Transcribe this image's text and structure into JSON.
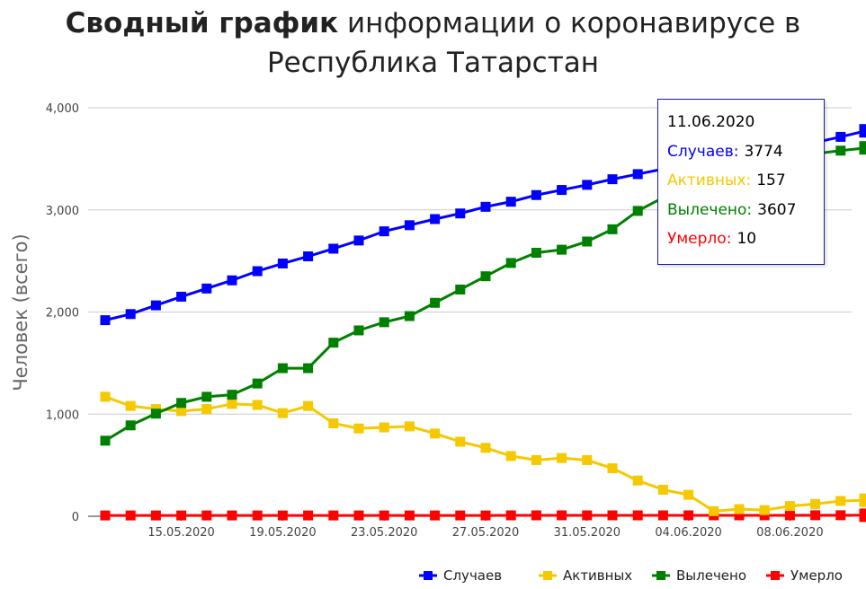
{
  "title": {
    "bold": "Сводный график",
    "rest": "информации о коронавирусе в Республика Татарстан"
  },
  "tooltip": {
    "date": "11.06.2020",
    "rows": [
      {
        "label": "Случаев:",
        "value": "3774",
        "color": "#0000ff"
      },
      {
        "label": "Активных:",
        "value": "157",
        "color": "#f5c800"
      },
      {
        "label": "Вылечено:",
        "value": "3607",
        "color": "#008000"
      },
      {
        "label": "Умерло:",
        "value": "10",
        "color": "#ff0000"
      }
    ]
  },
  "chart_data": {
    "type": "line",
    "ylabel": "Человек (всего)",
    "xlabel": "",
    "ylim": [
      0,
      4000
    ],
    "y_ticks": [
      "0",
      "1,000",
      "2,000",
      "3,000",
      "4,000"
    ],
    "y_tick_values": [
      0,
      1000,
      2000,
      3000,
      4000
    ],
    "grid": true,
    "legend_position": "bottom-right",
    "x": [
      "12.05.2020",
      "13.05.2020",
      "14.05.2020",
      "15.05.2020",
      "16.05.2020",
      "17.05.2020",
      "18.05.2020",
      "19.05.2020",
      "20.05.2020",
      "21.05.2020",
      "22.05.2020",
      "23.05.2020",
      "24.05.2020",
      "25.05.2020",
      "26.05.2020",
      "27.05.2020",
      "28.05.2020",
      "29.05.2020",
      "30.05.2020",
      "31.05.2020",
      "01.06.2020",
      "02.06.2020",
      "03.06.2020",
      "04.06.2020",
      "05.06.2020",
      "06.06.2020",
      "07.06.2020",
      "08.06.2020",
      "09.06.2020",
      "10.06.2020",
      "11.06.2020"
    ],
    "x_ticks": [
      "15.05.2020",
      "19.05.2020",
      "23.05.2020",
      "27.05.2020",
      "31.05.2020",
      "04.06.2020",
      "08.06.2020"
    ],
    "series": [
      {
        "name": "Случаев",
        "color": "#0000ff",
        "values": [
          1920,
          1980,
          2065,
          2150,
          2230,
          2310,
          2400,
          2475,
          2545,
          2620,
          2700,
          2790,
          2850,
          2910,
          2965,
          3030,
          3080,
          3145,
          3195,
          3245,
          3300,
          3350,
          3400,
          3450,
          3490,
          3530,
          3570,
          3610,
          3660,
          3715,
          3774
        ]
      },
      {
        "name": "Активных",
        "color": "#f5c800",
        "values": [
          1170,
          1080,
          1050,
          1030,
          1050,
          1100,
          1090,
          1010,
          1080,
          910,
          860,
          870,
          880,
          810,
          730,
          670,
          590,
          550,
          570,
          550,
          470,
          350,
          260,
          210,
          50,
          70,
          60,
          100,
          120,
          150,
          157
        ]
      },
      {
        "name": "Вылечено",
        "color": "#008000",
        "values": [
          740,
          890,
          1005,
          1110,
          1170,
          1190,
          1300,
          1450,
          1450,
          1700,
          1820,
          1900,
          1960,
          2090,
          2220,
          2350,
          2480,
          2580,
          2610,
          2690,
          2810,
          2990,
          3120,
          3230,
          3350,
          3440,
          3490,
          3530,
          3550,
          3580,
          3607
        ]
      },
      {
        "name": "Умерло",
        "color": "#ff0000",
        "values": [
          8,
          8,
          8,
          8,
          8,
          8,
          8,
          8,
          8,
          8,
          8,
          8,
          8,
          8,
          8,
          8,
          9,
          9,
          9,
          9,
          9,
          9,
          9,
          9,
          9,
          9,
          9,
          9,
          10,
          10,
          10
        ]
      }
    ]
  }
}
